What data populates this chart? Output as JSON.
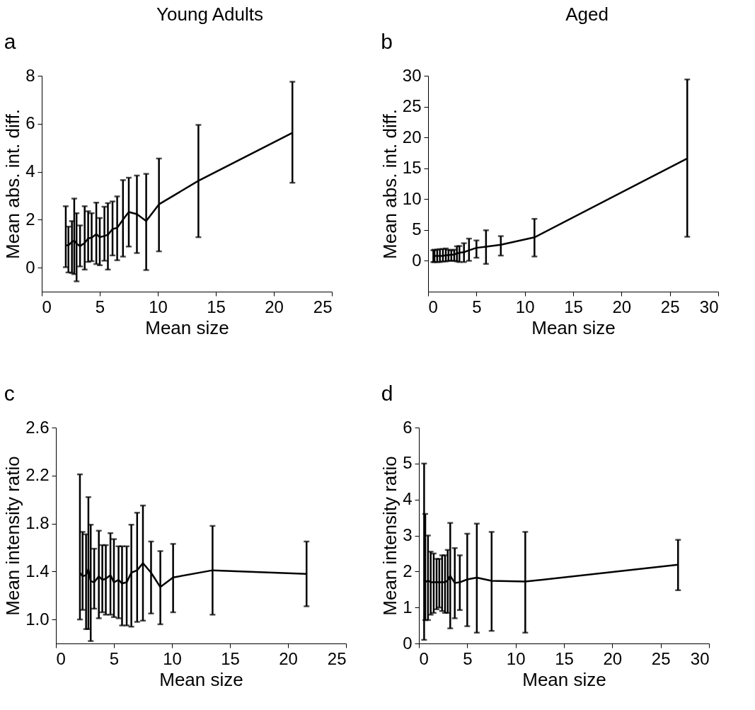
{
  "chart_data": [
    {
      "type": "line",
      "title": "a",
      "annotations": [
        "Young Adults"
      ],
      "xlabel": "Mean size",
      "ylabel": "Mean abs. int. diff.",
      "xlim": [
        0,
        25
      ],
      "xticks": [
        0,
        5,
        10,
        15,
        20,
        25
      ],
      "ylim": [
        -1,
        8
      ],
      "yticks": [
        0,
        2,
        4,
        6,
        8
      ],
      "x": [
        2.07,
        2.3,
        2.6,
        2.8,
        3.0,
        3.3,
        3.7,
        4.0,
        4.3,
        4.7,
        5.0,
        5.4,
        5.7,
        6.1,
        6.5,
        7.0,
        7.5,
        8.2,
        9.0,
        10.1,
        13.5,
        21.6
      ],
      "series": [
        {
          "color": "#000000",
          "values": [
            0.93,
            0.93,
            1.08,
            1.12,
            1.0,
            0.9,
            1.03,
            1.22,
            1.25,
            1.4,
            1.27,
            1.32,
            1.37,
            1.61,
            1.66,
            2.0,
            2.32,
            2.23,
            1.94,
            2.64,
            3.62,
            5.62
          ],
          "errors": [
            [
              0.02,
              2.56
            ],
            [
              -0.2,
              1.71
            ],
            [
              -0.22,
              1.94
            ],
            [
              -0.27,
              2.88
            ],
            [
              -0.57,
              2.27
            ],
            [
              0.05,
              1.76
            ],
            [
              -0.08,
              2.56
            ],
            [
              0.24,
              2.35
            ],
            [
              0.27,
              2.27
            ],
            [
              0.15,
              2.71
            ],
            [
              0.1,
              2.07
            ],
            [
              0.29,
              2.54
            ],
            [
              -0.08,
              2.69
            ],
            [
              0.51,
              2.76
            ],
            [
              0.31,
              2.97
            ],
            [
              0.46,
              3.65
            ],
            [
              0.88,
              3.75
            ],
            [
              0.61,
              3.84
            ],
            [
              -0.1,
              3.91
            ],
            [
              0.68,
              4.55
            ],
            [
              1.27,
              5.95
            ],
            [
              3.54,
              7.75
            ]
          ]
        }
      ]
    },
    {
      "type": "line",
      "title": "b",
      "annotations": [
        "Aged"
      ],
      "xlabel": "Mean size",
      "ylabel": "Mean abs. int. diff.",
      "xlim": [
        0,
        30
      ],
      "xticks": [
        0,
        5,
        10,
        15,
        20,
        25,
        30
      ],
      "ylim": [
        -5,
        30
      ],
      "yticks": [
        0,
        5,
        10,
        15,
        20,
        25,
        30
      ],
      "x": [
        0.54,
        0.66,
        0.94,
        1.22,
        1.53,
        1.83,
        2.11,
        2.4,
        2.7,
        2.98,
        3.24,
        3.71,
        4.23,
        5.0,
        5.99,
        7.52,
        11.0,
        26.8
      ],
      "series": [
        {
          "color": "#000000",
          "values": [
            0.7,
            0.8,
            0.8,
            0.8,
            0.8,
            0.9,
            0.9,
            1.0,
            1.0,
            1.2,
            1.3,
            1.4,
            1.7,
            2.1,
            2.3,
            2.6,
            3.8,
            16.6
          ],
          "errors": [
            [
              -0.2,
              1.7
            ],
            [
              -0.2,
              1.8
            ],
            [
              -0.2,
              1.8
            ],
            [
              -0.2,
              1.9
            ],
            [
              -0.1,
              1.9
            ],
            [
              -0.1,
              2.0
            ],
            [
              0,
              1.8
            ],
            [
              0,
              1.7
            ],
            [
              0,
              1.8
            ],
            [
              -0.1,
              2.35
            ],
            [
              -0.2,
              2.4
            ],
            [
              -0.2,
              2.85
            ],
            [
              0,
              3.6
            ],
            [
              0.5,
              3.3
            ],
            [
              -0.5,
              4.95
            ],
            [
              0.85,
              4.0
            ],
            [
              0.7,
              6.8
            ],
            [
              3.9,
              29.4
            ]
          ]
        }
      ]
    },
    {
      "type": "line",
      "title": "c",
      "xlabel": "Mean size",
      "ylabel": "Mean intensity ratio",
      "xlim": [
        0,
        25
      ],
      "xticks": [
        0,
        5,
        10,
        15,
        20,
        25
      ],
      "ylim": [
        0.8,
        2.6
      ],
      "yticks": [
        {
          "value": 1,
          "label": "1.0"
        },
        1.4,
        1.8,
        2.2,
        2.6
      ],
      "x": [
        2.07,
        2.3,
        2.6,
        2.8,
        3.0,
        3.3,
        3.7,
        4.0,
        4.3,
        4.7,
        5.0,
        5.4,
        5.7,
        6.1,
        6.5,
        7.0,
        7.5,
        8.2,
        9.0,
        10.1,
        13.5,
        21.6
      ],
      "series": [
        {
          "color": "#000000",
          "values": [
            1.39,
            1.36,
            1.37,
            1.42,
            1.32,
            1.31,
            1.36,
            1.33,
            1.34,
            1.37,
            1.31,
            1.33,
            1.3,
            1.31,
            1.39,
            1.41,
            1.47,
            1.39,
            1.27,
            1.35,
            1.41,
            1.38
          ],
          "errors": [
            [
              1.0,
              2.21
            ],
            [
              1.08,
              1.73
            ],
            [
              0.92,
              1.71
            ],
            [
              0.92,
              2.02
            ],
            [
              0.82,
              1.79
            ],
            [
              1.09,
              1.59
            ],
            [
              1.01,
              1.74
            ],
            [
              1.06,
              1.62
            ],
            [
              1.04,
              1.62
            ],
            [
              1.04,
              1.72
            ],
            [
              1.02,
              1.67
            ],
            [
              1.01,
              1.61
            ],
            [
              0.95,
              1.61
            ],
            [
              0.95,
              1.61
            ],
            [
              0.94,
              1.79
            ],
            [
              0.98,
              1.89
            ],
            [
              0.99,
              1.95
            ],
            [
              1.05,
              1.65
            ],
            [
              0.96,
              1.57
            ],
            [
              1.06,
              1.63
            ],
            [
              1.04,
              1.78
            ],
            [
              1.11,
              1.65
            ]
          ]
        }
      ]
    },
    {
      "type": "line",
      "title": "d",
      "xlabel": "Mean size",
      "ylabel": "Mean intensity ratio",
      "xlim": [
        0,
        30
      ],
      "xticks": [
        0,
        5,
        10,
        15,
        20,
        25,
        30
      ],
      "ylim": [
        0,
        6
      ],
      "yticks": [
        0,
        1,
        2,
        3,
        4,
        5,
        6
      ],
      "x": [
        0.54,
        0.66,
        0.94,
        1.22,
        1.53,
        1.83,
        2.11,
        2.4,
        2.7,
        2.98,
        3.24,
        3.71,
        4.23,
        5.0,
        5.99,
        7.52,
        11.0,
        26.8
      ],
      "series": [
        {
          "color": "#000000",
          "values": [
            1.8,
            1.7,
            1.75,
            1.7,
            1.7,
            1.7,
            1.7,
            1.7,
            1.7,
            1.75,
            1.88,
            1.68,
            1.7,
            1.78,
            1.83,
            1.74,
            1.72,
            2.19
          ],
          "errors": [
            [
              0.1,
              5.0
            ],
            [
              0.65,
              3.6
            ],
            [
              0.65,
              3.0
            ],
            [
              0.8,
              2.55
            ],
            [
              0.85,
              2.5
            ],
            [
              0.95,
              2.35
            ],
            [
              1.0,
              2.35
            ],
            [
              0.9,
              2.45
            ],
            [
              0.85,
              2.45
            ],
            [
              0.85,
              2.6
            ],
            [
              0.42,
              3.35
            ],
            [
              0.7,
              2.65
            ],
            [
              0.93,
              2.45
            ],
            [
              0.48,
              3.05
            ],
            [
              0.3,
              3.33
            ],
            [
              0.35,
              3.1
            ],
            [
              0.3,
              3.1
            ],
            [
              1.48,
              2.88
            ]
          ]
        }
      ]
    }
  ]
}
